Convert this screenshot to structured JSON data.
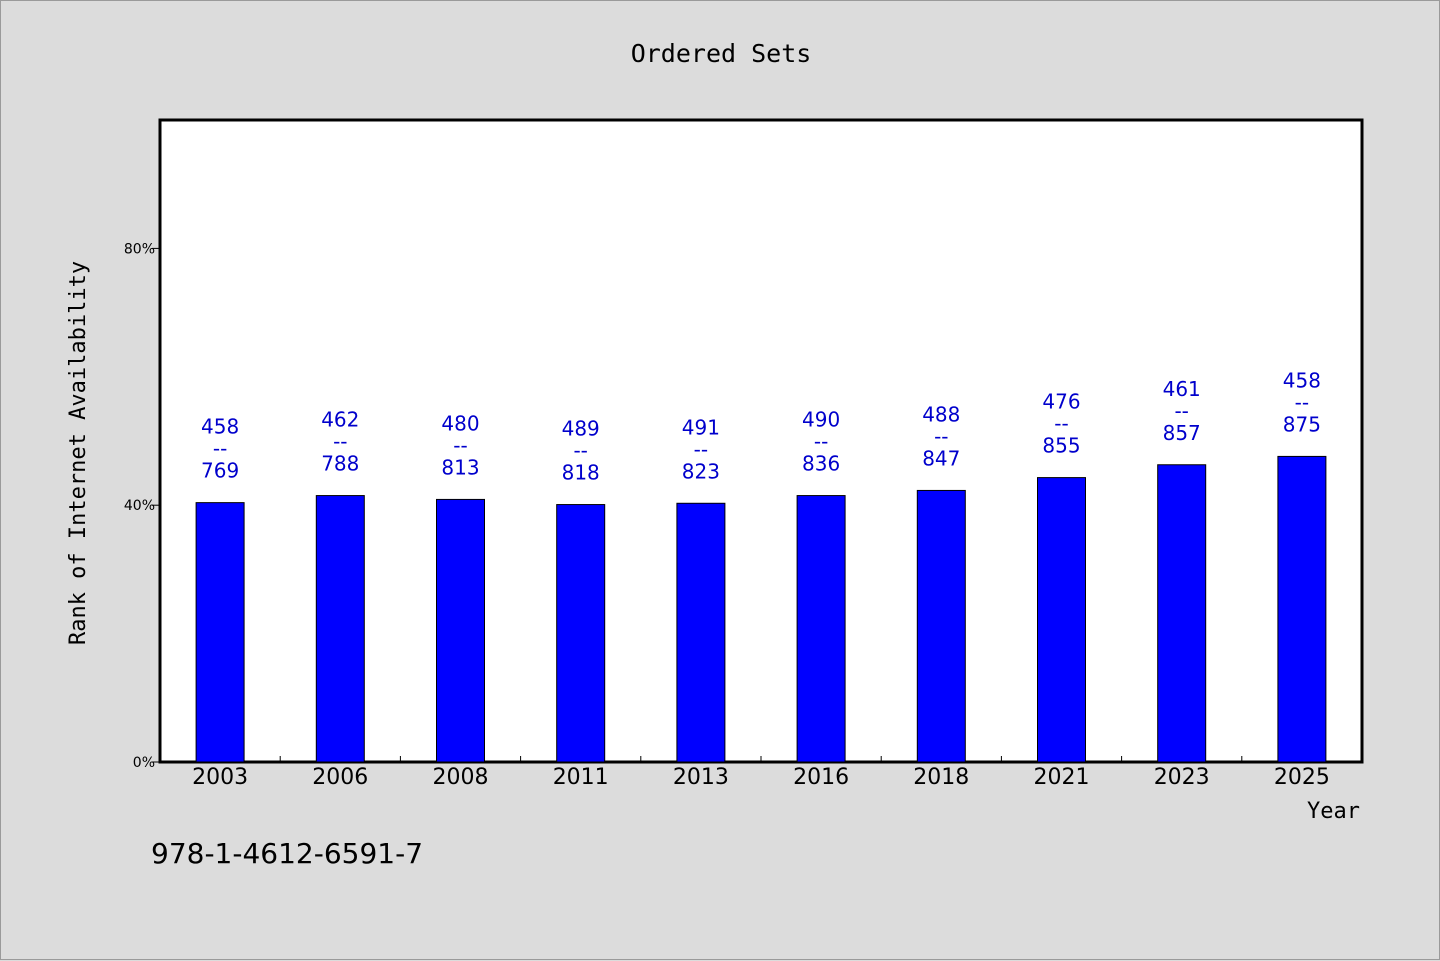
{
  "chart_data": {
    "type": "bar",
    "title": "Ordered Sets",
    "xlabel": "Year",
    "ylabel": "Rank of Internet Availability",
    "ylim": [
      0,
      100
    ],
    "yticks": [
      {
        "value": 0,
        "label": "0%"
      },
      {
        "value": 40,
        "label": "40%"
      },
      {
        "value": 80,
        "label": "80%"
      }
    ],
    "categories": [
      "2003",
      "2006",
      "2008",
      "2011",
      "2013",
      "2016",
      "2018",
      "2021",
      "2023",
      "2025"
    ],
    "values": [
      40.4,
      41.5,
      40.9,
      40.1,
      40.3,
      41.5,
      42.3,
      44.3,
      46.3,
      47.6
    ],
    "data_labels": [
      {
        "top": "458",
        "sep": "--",
        "bottom": "769"
      },
      {
        "top": "462",
        "sep": "--",
        "bottom": "788"
      },
      {
        "top": "480",
        "sep": "--",
        "bottom": "813"
      },
      {
        "top": "489",
        "sep": "--",
        "bottom": "818"
      },
      {
        "top": "491",
        "sep": "--",
        "bottom": "823"
      },
      {
        "top": "490",
        "sep": "--",
        "bottom": "836"
      },
      {
        "top": "488",
        "sep": "--",
        "bottom": "847"
      },
      {
        "top": "476",
        "sep": "--",
        "bottom": "855"
      },
      {
        "top": "461",
        "sep": "--",
        "bottom": "857"
      },
      {
        "top": "458",
        "sep": "--",
        "bottom": "875"
      }
    ],
    "grid": false,
    "colors": {
      "bar": "#0000ff",
      "label": "#0000cc",
      "axis": "#000000",
      "plot_bg": "#ffffff",
      "page_bg": "#dcdcdc"
    }
  },
  "footnote": "978-1-4612-6591-7"
}
